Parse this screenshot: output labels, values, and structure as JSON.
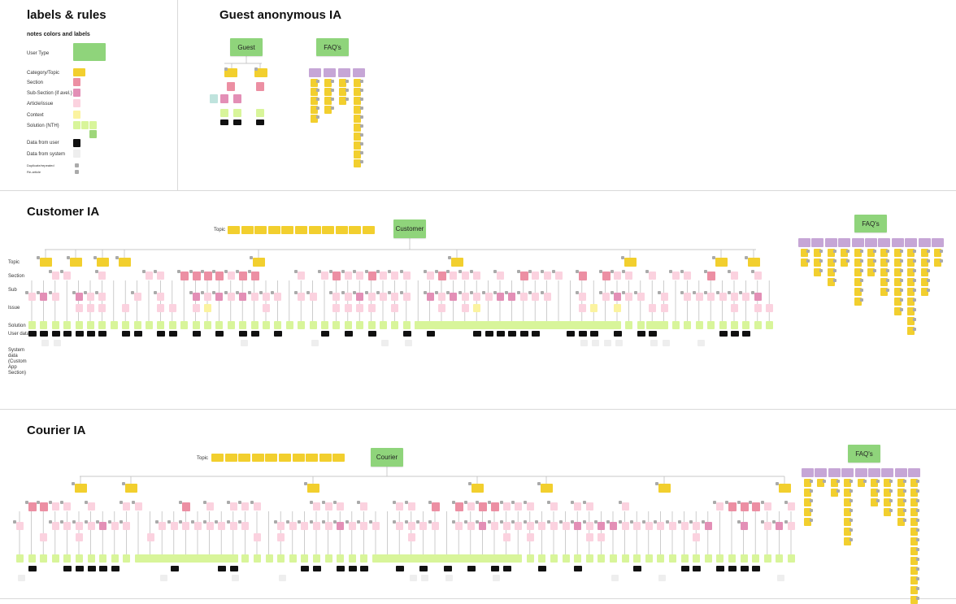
{
  "legend": {
    "title": "labels  & rules",
    "subtitle": "notes colors and labels",
    "items": [
      {
        "label": "User Type"
      },
      {
        "label": "Category/Topic"
      },
      {
        "label": "Section"
      },
      {
        "label": "Sub-Section (if avel.)"
      },
      {
        "label": "Article/issue"
      },
      {
        "label": "Context"
      },
      {
        "label": "Solution (NTH)"
      },
      {
        "label": "Data from user"
      },
      {
        "label": "Data from system"
      },
      {
        "label": "Duplicate/repeated"
      },
      {
        "label": "Re-article"
      }
    ]
  },
  "guest": {
    "title": "Guest anonymous IA",
    "user_type": "Guest",
    "faq_label": "FAQ's"
  },
  "customer": {
    "title": "Customer IA",
    "user_type": "Customer",
    "faq_label": "FAQ's",
    "topic_label": "Topic",
    "row_labels": [
      "Topic",
      "Section",
      "Sub",
      "Issue",
      "Solution",
      "User data",
      "System data (Custom App Section)"
    ]
  },
  "courier": {
    "title": "Courier IA",
    "user_type": "Courier",
    "faq_label": "FAQ's",
    "topic_label": "Topic"
  },
  "colors": {
    "user_type": "#8fd47b",
    "topic": "#f2cf2e",
    "section": "#ec8fa3",
    "subsection": "#e38fb6",
    "issue": "#fbd2df",
    "context": "#fbf3a0",
    "solution": "#d8f59a",
    "solution_dark": "#9ed67a",
    "user_data": "#111111",
    "system_data": "#eeeeee",
    "dup": "#aaaaaa",
    "faq_header": "#c6a6d6",
    "lines": "#b8b8b8"
  }
}
